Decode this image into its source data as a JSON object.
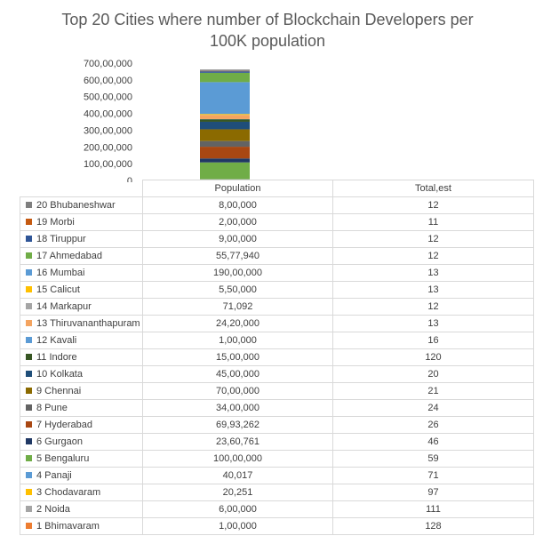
{
  "chart_data": {
    "type": "bar",
    "stacked": true,
    "title": [
      "Top 20 Cities where number of Blockchain Developers per",
      "100K population"
    ],
    "xlabel": "",
    "ylabel": "",
    "categories": [
      "Population"
    ],
    "ylim": [
      0,
      70000000
    ],
    "yticks": [
      0,
      10000000,
      20000000,
      30000000,
      40000000,
      50000000,
      60000000,
      70000000
    ],
    "ytick_labels": [
      "0",
      "100,00,000",
      "200,00,000",
      "300,00,000",
      "400,00,000",
      "500,00,000",
      "600,00,000",
      "700,00,000"
    ],
    "legend_placement": "data-table",
    "table_headers": [
      "Population",
      "Total,est"
    ],
    "series": [
      {
        "name": "20 Bhubaneshwar",
        "color": "#7f7f7f",
        "population": 800000,
        "population_label": "8,00,000",
        "total": 12
      },
      {
        "name": "19 Morbi",
        "color": "#c55a11",
        "population": 200000,
        "population_label": "2,00,000",
        "total": 11
      },
      {
        "name": "18 Tiruppur",
        "color": "#2f5597",
        "population": 900000,
        "population_label": "9,00,000",
        "total": 12
      },
      {
        "name": "17 Ahmedabad",
        "color": "#70ad47",
        "population": 5577940,
        "population_label": "55,77,940",
        "total": 12
      },
      {
        "name": "16 Mumbai",
        "color": "#5b9bd5",
        "population": 19000000,
        "population_label": "190,00,000",
        "total": 13
      },
      {
        "name": "15 Calicut",
        "color": "#ffc000",
        "population": 550000,
        "population_label": "5,50,000",
        "total": 13
      },
      {
        "name": "14 Markapur",
        "color": "#a5a5a5",
        "population": 71092,
        "population_label": "71,092",
        "total": 12
      },
      {
        "name": "13 Thiruvananthapuram",
        "color": "#f4a460",
        "population": 2420000,
        "population_label": "24,20,000",
        "total": 13
      },
      {
        "name": "12 Kavali",
        "color": "#5b9bd5",
        "population": 100000,
        "population_label": "1,00,000",
        "total": 16
      },
      {
        "name": "11 Indore",
        "color": "#375623",
        "population": 1500000,
        "population_label": "15,00,000",
        "total": 120
      },
      {
        "name": "10 Kolkata",
        "color": "#1f4e79",
        "population": 4500000,
        "population_label": "45,00,000",
        "total": 20
      },
      {
        "name": "9 Chennai",
        "color": "#8b6a00",
        "population": 7000000,
        "population_label": "70,00,000",
        "total": 21
      },
      {
        "name": "8 Pune",
        "color": "#636363",
        "population": 3400000,
        "population_label": "34,00,000",
        "total": 24
      },
      {
        "name": "7 Hyderabad",
        "color": "#a94712",
        "population": 6993262,
        "population_label": "69,93,262",
        "total": 26
      },
      {
        "name": "6 Gurgaon",
        "color": "#203864",
        "population": 2360761,
        "population_label": "23,60,761",
        "total": 46
      },
      {
        "name": "5 Bengaluru",
        "color": "#70ad47",
        "population": 10000000,
        "population_label": "100,00,000",
        "total": 59
      },
      {
        "name": "4 Panaji",
        "color": "#5b9bd5",
        "population": 40017,
        "population_label": "40,017",
        "total": 71
      },
      {
        "name": "3 Chodavaram",
        "color": "#ffc000",
        "population": 20251,
        "population_label": "20,251",
        "total": 97
      },
      {
        "name": "2 Noida",
        "color": "#a5a5a5",
        "population": 600000,
        "population_label": "6,00,000",
        "total": 111
      },
      {
        "name": "1 Bhimavaram",
        "color": "#ed7d31",
        "population": 100000,
        "population_label": "1,00,000",
        "total": 128
      }
    ]
  }
}
